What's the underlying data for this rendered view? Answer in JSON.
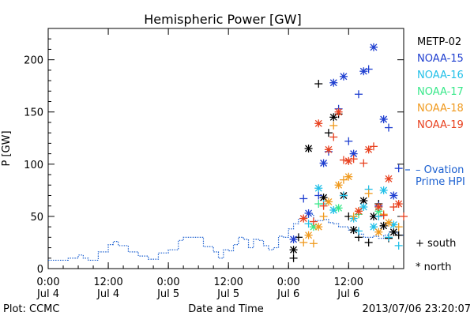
{
  "chart_data": {
    "type": "scatter",
    "title": "Hemispheric Power [GW]",
    "ylabel": "P [GW]",
    "xlabel": "Date and Time",
    "xlim": [
      "2013-07-04T00:00",
      "2013-07-06T23:00"
    ],
    "ylim": [
      0,
      230
    ],
    "yticks": [
      0,
      50,
      100,
      150,
      200
    ],
    "xticks": [
      {
        "time": "2013-07-04T00:00",
        "line1": "0:00",
        "line2": "Jul 4"
      },
      {
        "time": "2013-07-04T12:00",
        "line1": "12:00",
        "line2": "Jul 4"
      },
      {
        "time": "2013-07-05T00:00",
        "line1": "0:00",
        "line2": "Jul 5"
      },
      {
        "time": "2013-07-05T12:00",
        "line1": "12:00",
        "line2": "Jul 5"
      },
      {
        "time": "2013-07-06T00:00",
        "line1": "0:00",
        "line2": "Jul 6"
      },
      {
        "time": "2013-07-06T12:00",
        "line1": "12:00",
        "line2": "Jul 6"
      }
    ],
    "ovation": {
      "name": "– Ovation Prime HPI",
      "color": "#1a5fd0",
      "x": [
        "2013-07-04T00:00",
        "2013-07-04T04:00",
        "2013-07-04T06:00",
        "2013-07-04T07:00",
        "2013-07-04T08:00",
        "2013-07-04T10:00",
        "2013-07-04T12:00",
        "2013-07-04T13:00",
        "2013-07-04T14:00",
        "2013-07-04T16:00",
        "2013-07-04T18:00",
        "2013-07-04T20:00",
        "2013-07-04T22:00",
        "2013-07-05T00:00",
        "2013-07-05T02:00",
        "2013-07-05T03:00",
        "2013-07-05T05:00",
        "2013-07-05T07:00",
        "2013-07-05T09:00",
        "2013-07-05T10:00",
        "2013-07-05T11:00",
        "2013-07-05T12:00",
        "2013-07-05T13:00",
        "2013-07-05T14:00",
        "2013-07-05T15:00",
        "2013-07-05T16:00",
        "2013-07-05T17:00",
        "2013-07-05T18:00",
        "2013-07-05T19:00",
        "2013-07-05T20:00",
        "2013-07-05T21:00",
        "2013-07-05T22:00",
        "2013-07-05T23:00",
        "2013-07-06T00:00",
        "2013-07-06T01:00",
        "2013-07-06T02:00",
        "2013-07-06T03:00",
        "2013-07-06T04:00",
        "2013-07-06T05:00",
        "2013-07-06T06:00",
        "2013-07-06T07:00",
        "2013-07-06T08:00",
        "2013-07-06T09:00",
        "2013-07-06T10:00",
        "2013-07-06T11:00",
        "2013-07-06T12:00",
        "2013-07-06T13:00",
        "2013-07-06T14:00",
        "2013-07-06T15:00",
        "2013-07-06T16:00",
        "2013-07-06T17:00",
        "2013-07-06T18:00",
        "2013-07-06T19:00",
        "2013-07-06T20:00",
        "2013-07-06T21:00",
        "2013-07-06T22:00",
        "2013-07-06T23:00"
      ],
      "y": [
        8,
        8,
        10,
        13,
        10,
        8,
        16,
        23,
        26,
        22,
        16,
        12,
        9,
        15,
        18,
        27,
        30,
        30,
        21,
        16,
        10,
        18,
        17,
        23,
        30,
        28,
        20,
        28,
        27,
        22,
        18,
        20,
        31,
        30,
        38,
        43,
        48,
        49,
        52,
        46,
        46,
        47,
        44,
        43,
        40,
        40,
        37,
        37,
        33,
        30,
        30,
        31,
        29,
        32,
        35,
        34,
        32
      ]
    },
    "series": [
      {
        "name": "METP-02",
        "color": "#000000",
        "x": [
          "2013-07-06T01:00",
          "2013-07-06T01:00",
          "2013-07-06T02:00",
          "2013-07-06T04:00",
          "2013-07-06T06:00",
          "2013-07-06T07:00",
          "2013-07-06T08:00",
          "2013-07-06T09:00",
          "2013-07-06T10:00",
          "2013-07-06T11:00",
          "2013-07-06T12:00",
          "2013-07-06T13:00",
          "2013-07-06T14:00",
          "2013-07-06T15:00",
          "2013-07-06T16:00",
          "2013-07-06T17:00",
          "2013-07-06T18:00",
          "2013-07-06T19:00",
          "2013-07-06T20:00",
          "2013-07-06T21:00",
          "2013-07-06T22:00"
        ],
        "y": [
          10,
          18,
          30,
          115,
          177,
          68,
          130,
          145,
          148,
          70,
          50,
          37,
          30,
          65,
          25,
          50,
          62,
          41,
          29,
          35,
          32
        ]
      },
      {
        "name": "NOAA-15",
        "color": "#1f3fd0",
        "x": [
          "2013-07-06T01:00",
          "2013-07-06T03:00",
          "2013-07-06T04:00",
          "2013-07-06T06:00",
          "2013-07-06T07:00",
          "2013-07-06T08:00",
          "2013-07-06T09:00",
          "2013-07-06T10:00",
          "2013-07-06T11:00",
          "2013-07-06T12:00",
          "2013-07-06T13:00",
          "2013-07-06T14:00",
          "2013-07-06T15:00",
          "2013-07-06T16:00",
          "2013-07-06T17:00",
          "2013-07-06T18:00",
          "2013-07-06T19:00",
          "2013-07-06T20:00",
          "2013-07-06T21:00",
          "2013-07-06T22:00"
        ],
        "y": [
          28,
          67,
          53,
          70,
          101,
          112,
          178,
          153,
          184,
          122,
          110,
          167,
          189,
          191,
          212,
          60,
          143,
          135,
          70,
          96
        ]
      },
      {
        "name": "NOAA-16",
        "color": "#22c0e8",
        "x": [
          "2013-07-06T04:00",
          "2013-07-06T06:00",
          "2013-07-06T07:00",
          "2013-07-06T09:00",
          "2013-07-06T11:00",
          "2013-07-06T13:00",
          "2013-07-06T14:00",
          "2013-07-06T15:00",
          "2013-07-06T16:00",
          "2013-07-06T17:00",
          "2013-07-06T18:00",
          "2013-07-06T19:00",
          "2013-07-06T20:00",
          "2013-07-06T21:00",
          "2013-07-06T22:00"
        ],
        "y": [
          43,
          77,
          62,
          56,
          70,
          48,
          36,
          59,
          76,
          40,
          50,
          75,
          30,
          42,
          22
        ]
      },
      {
        "name": "NOAA-17",
        "color": "#38e88a",
        "x": [
          "2013-07-06T05:00",
          "2013-07-06T06:00",
          "2013-07-06T10:00",
          "2013-07-06T14:00",
          "2013-07-06T18:00"
        ],
        "y": [
          40,
          62,
          58,
          52,
          55
        ]
      },
      {
        "name": "NOAA-18",
        "color": "#f09a1e",
        "x": [
          "2013-07-06T03:00",
          "2013-07-06T04:00",
          "2013-07-06T05:00",
          "2013-07-06T06:00",
          "2013-07-06T07:00",
          "2013-07-06T08:00",
          "2013-07-06T09:00",
          "2013-07-06T10:00",
          "2013-07-06T11:00",
          "2013-07-06T12:00",
          "2013-07-06T13:00",
          "2013-07-06T14:00",
          "2013-07-06T16:00",
          "2013-07-06T18:00",
          "2013-07-06T19:00",
          "2013-07-06T20:00",
          "2013-07-06T22:00"
        ],
        "y": [
          25,
          32,
          24,
          40,
          50,
          64,
          137,
          80,
          85,
          88,
          50,
          55,
          72,
          35,
          52,
          44,
          40
        ]
      },
      {
        "name": "NOAA-19",
        "color": "#e8401e",
        "x": [
          "2013-07-06T03:00",
          "2013-07-06T05:00",
          "2013-07-06T06:00",
          "2013-07-06T07:00",
          "2013-07-06T08:00",
          "2013-07-06T09:00",
          "2013-07-06T10:00",
          "2013-07-06T11:00",
          "2013-07-06T12:00",
          "2013-07-06T13:00",
          "2013-07-06T14:00",
          "2013-07-06T15:00",
          "2013-07-06T16:00",
          "2013-07-06T17:00",
          "2013-07-06T18:00",
          "2013-07-06T19:00",
          "2013-07-06T20:00",
          "2013-07-06T21:00",
          "2013-07-06T22:00",
          "2013-07-06T23:00"
        ],
        "y": [
          48,
          45,
          139,
          60,
          114,
          126,
          150,
          104,
          103,
          105,
          55,
          101,
          114,
          117,
          59,
          51,
          86,
          59,
          62,
          50
        ]
      }
    ],
    "legend_placement": "right",
    "marker_legend": [
      {
        "symbol": "+",
        "label": "south"
      },
      {
        "symbol": "*",
        "label": "north"
      }
    ],
    "footer_left": "Plot: CCMC",
    "footer_right": "2013/07/06 23:20:07"
  }
}
